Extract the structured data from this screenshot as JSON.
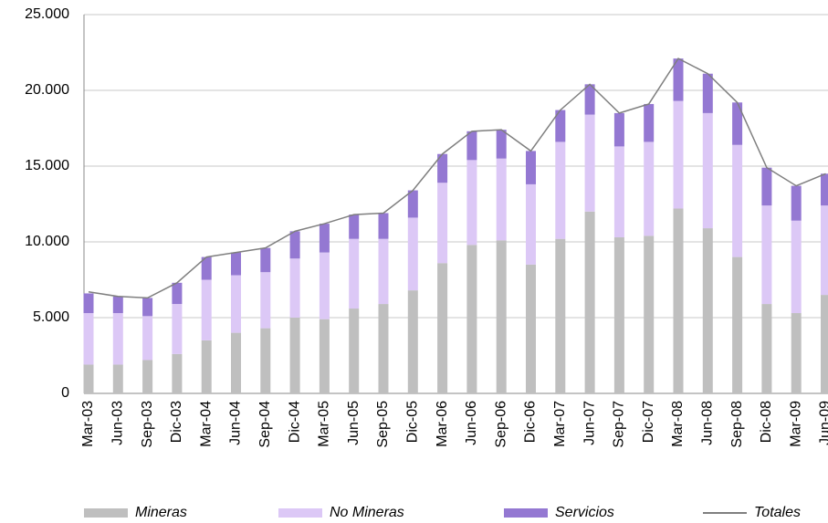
{
  "chart_data": {
    "type": "bar",
    "stacked": true,
    "categories": [
      "Mar-03",
      "Jun-03",
      "Sep-03",
      "Dic-03",
      "Mar-04",
      "Jun-04",
      "Sep-04",
      "Dic-04",
      "Mar-05",
      "Jun-05",
      "Sep-05",
      "Dic-05",
      "Mar-06",
      "Jun-06",
      "Sep-06",
      "Dic-06",
      "Mar-07",
      "Jun-07",
      "Sep-07",
      "Dic-07",
      "Mar-08",
      "Jun-08",
      "Sep-08",
      "Dic-08",
      "Mar-09",
      "Jun-09"
    ],
    "series": [
      {
        "name": "Mineras",
        "color": "#bfbfbf",
        "values": [
          1900,
          1900,
          2200,
          2600,
          3500,
          4000,
          4300,
          5000,
          4900,
          5600,
          5900,
          6800,
          8600,
          9800,
          10100,
          8500,
          10200,
          12000,
          10300,
          10400,
          12200,
          10900,
          9000,
          5900,
          5300,
          6500
        ]
      },
      {
        "name": "No Mineras",
        "color": "#dcc8f6",
        "values": [
          3400,
          3400,
          2900,
          3300,
          4000,
          3800,
          3700,
          3900,
          4400,
          4600,
          4300,
          4800,
          5300,
          5600,
          5400,
          5300,
          6400,
          6400,
          6000,
          6200,
          7100,
          7600,
          7400,
          6500,
          6100,
          5900
        ]
      },
      {
        "name": "Servicios",
        "color": "#9478d2",
        "values": [
          1300,
          1100,
          1200,
          1400,
          1500,
          1500,
          1600,
          1800,
          1900,
          1600,
          1700,
          1800,
          1900,
          1900,
          1900,
          2200,
          2100,
          2000,
          2200,
          2500,
          2800,
          2600,
          2800,
          2500,
          2300,
          2100
        ]
      },
      {
        "name": "Totales",
        "color": "#7f7f7f",
        "type": "line",
        "values": [
          6700,
          6400,
          6300,
          7300,
          9000,
          9300,
          9600,
          10700,
          11200,
          11800,
          11900,
          13400,
          15800,
          17300,
          17400,
          16000,
          18700,
          20400,
          18500,
          19100,
          22100,
          21100,
          19200,
          14900,
          13700,
          14500
        ]
      }
    ],
    "ylim": [
      0,
      25000
    ],
    "yticks": [
      0,
      {
        "value": 5000,
        "label": "5.000"
      },
      {
        "value": 10000,
        "label": "10.000"
      },
      {
        "value": 15000,
        "label": "15.000"
      },
      {
        "value": 20000,
        "label": "20.000"
      },
      {
        "value": 25000,
        "label": "25.000"
      }
    ],
    "grid": true,
    "legend": "bottom"
  }
}
